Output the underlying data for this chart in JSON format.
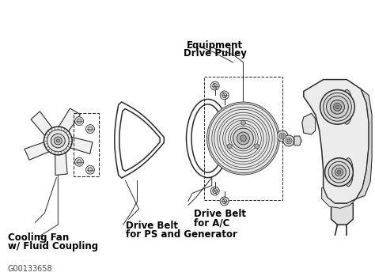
{
  "bg_color": "#ffffff",
  "line_color": "#2a2a2a",
  "label_color": "#000000",
  "diagram_id": "G00133658",
  "labels": {
    "cooling_fan": [
      "Cooling Fan",
      "w/ Fluid Coupling"
    ],
    "drive_belt_ps": [
      "Drive Belt",
      "for PS and Generator"
    ],
    "drive_belt_ac": [
      "Drive Belt",
      "for A/C"
    ],
    "equipment_pulley": [
      "Equipment",
      "Drive Pulley"
    ]
  },
  "fig_width": 4.74,
  "fig_height": 3.49,
  "dpi": 100
}
